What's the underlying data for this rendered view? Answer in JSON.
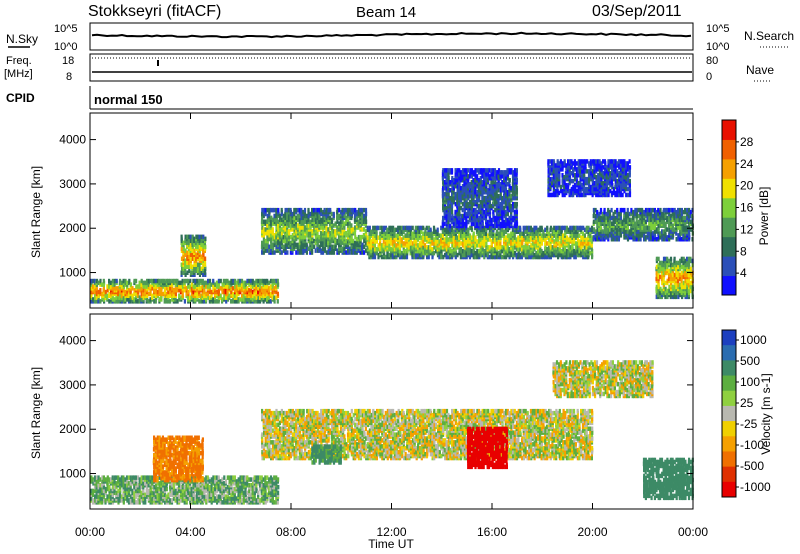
{
  "header": {
    "station": "Stokkseyri (fitACF)",
    "beam": "Beam 14",
    "date": "03/Sep/2011"
  },
  "top_panels": {
    "nsky": {
      "label": "N.Sky",
      "ticks_left": [
        "10^5",
        "10^0"
      ],
      "ticks_right": [
        "10^5",
        "10^0"
      ],
      "right_label": "N.Search"
    },
    "freq": {
      "label_line1": "Freq.",
      "label_line2": "[MHz]",
      "ticks_left": [
        "18",
        "8"
      ],
      "ticks_right": [
        "80",
        "0"
      ],
      "right_label": "Nave"
    },
    "cpid": {
      "label": "CPID",
      "value": "normal 150"
    }
  },
  "chart_data": [
    {
      "type": "heatmap",
      "name_on_chart": "",
      "ylabel": "Slant Range [km]",
      "xlabel": "",
      "ylim": [
        200,
        4600
      ],
      "yticks": [
        "1000",
        "2000",
        "3000",
        "4000"
      ],
      "xlim": [
        "00:00",
        "24:00"
      ],
      "colorbar": {
        "label": "Power [dB]",
        "ticks": [
          "4",
          "8",
          "12",
          "16",
          "20",
          "24",
          "28"
        ],
        "range": [
          0,
          32
        ]
      },
      "features": [
        {
          "t_start": 0.0,
          "t_end": 7.5,
          "r_start": 300,
          "r_end": 800,
          "value": 28
        },
        {
          "t_start": 3.6,
          "t_end": 4.6,
          "r_start": 900,
          "r_end": 1800,
          "value": 26
        },
        {
          "t_start": 6.8,
          "t_end": 11.0,
          "r_start": 1400,
          "r_end": 2400,
          "value": 18
        },
        {
          "t_start": 11.0,
          "t_end": 20.0,
          "r_start": 1300,
          "r_end": 2000,
          "value": 22
        },
        {
          "t_start": 20.0,
          "t_end": 24.0,
          "r_start": 1700,
          "r_end": 2400,
          "value": 14
        },
        {
          "t_start": 14.0,
          "t_end": 17.0,
          "r_start": 2000,
          "r_end": 3300,
          "value": 8
        },
        {
          "t_start": 18.2,
          "t_end": 21.5,
          "r_start": 2700,
          "r_end": 3500,
          "value": 6
        },
        {
          "t_start": 22.5,
          "t_end": 24.0,
          "r_start": 400,
          "r_end": 1300,
          "value": 26
        }
      ]
    },
    {
      "type": "heatmap",
      "name_on_chart": "",
      "ylabel": "Slant Range [km]",
      "xlabel": "Time UT",
      "ylim": [
        200,
        4600
      ],
      "yticks": [
        "1000",
        "2000",
        "3000",
        "4000"
      ],
      "xlim": [
        "00:00",
        "24:00"
      ],
      "xticks": [
        "00:00",
        "04:00",
        "08:00",
        "12:00",
        "16:00",
        "20:00",
        "00:00"
      ],
      "colorbar": {
        "label": "Velocity [m s-1]",
        "ticks": [
          "1000",
          "500",
          "100",
          "25",
          "-25",
          "-100",
          "-500",
          "-1000"
        ]
      },
      "features": [
        {
          "t_start": 0.0,
          "t_end": 7.5,
          "r_start": 300,
          "r_end": 900,
          "value": 80
        },
        {
          "t_start": 2.5,
          "t_end": 4.5,
          "r_start": 800,
          "r_end": 1800,
          "value": -150
        },
        {
          "t_start": 6.8,
          "t_end": 20.0,
          "r_start": 1300,
          "r_end": 2400,
          "value": 0
        },
        {
          "t_start": 15.0,
          "t_end": 16.6,
          "r_start": 1100,
          "r_end": 2000,
          "value": -700
        },
        {
          "t_start": 8.8,
          "t_end": 10.0,
          "r_start": 1200,
          "r_end": 1600,
          "value": 150
        },
        {
          "t_start": 18.4,
          "t_end": 22.4,
          "r_start": 2700,
          "r_end": 3500,
          "value": 0
        },
        {
          "t_start": 22.0,
          "t_end": 24.0,
          "r_start": 400,
          "r_end": 1300,
          "value": 200
        }
      ]
    }
  ],
  "colors": {
    "power": [
      "#1010ff",
      "#2b4fb8",
      "#2e6e58",
      "#4f9a55",
      "#7dcf3a",
      "#f0e000",
      "#f5a000",
      "#f06000",
      "#e81000"
    ],
    "velocity_pos": [
      "#1c3fbf",
      "#2a6cb0",
      "#3d8a66",
      "#5cae40",
      "#8fd040"
    ],
    "velocity_neg": [
      "#f0d000",
      "#f5a000",
      "#f07000",
      "#e03000",
      "#e80000"
    ],
    "ground": "#b8b8b0"
  }
}
